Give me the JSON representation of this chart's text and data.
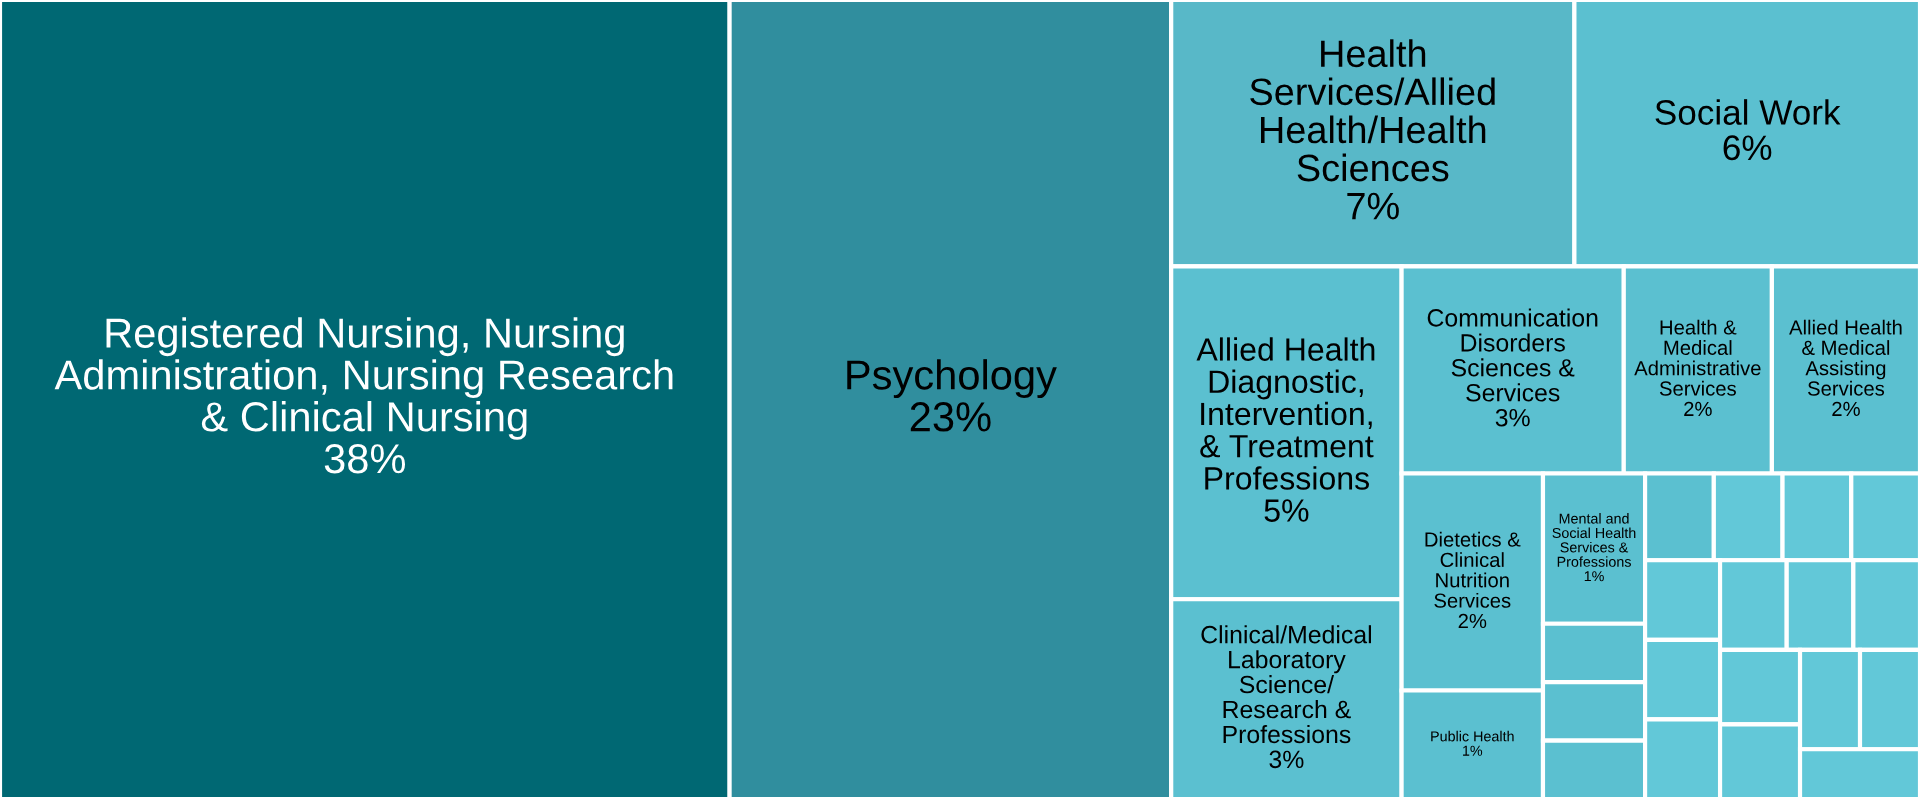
{
  "chart_data": {
    "type": "other",
    "categories": [
      "Registered Nursing, Nursing Administration, Nursing Research & Clinical Nursing",
      "Psychology",
      "Health Services/Allied Health/Health Sciences",
      "Social Work",
      "Allied Health Diagnostic, Intervention, & Treatment Professions",
      "Clinical/Medical Laboratory Science/ Research & Professions",
      "Communication Disorders Sciences & Services",
      "Health & Medical Administrative Services",
      "Allied Health & Medical Assisting Services",
      "Dietetics & Clinical Nutrition Services",
      "Public Health",
      "Mental and Social Health Services & Professions",
      null,
      null,
      null,
      null,
      null,
      null,
      null,
      null,
      null,
      null,
      null,
      null,
      null,
      null,
      null,
      null,
      null,
      null
    ],
    "values": [
      38,
      23,
      7,
      6,
      5,
      3,
      3,
      2,
      2,
      2,
      1,
      1,
      null,
      null,
      null,
      null,
      null,
      null,
      null,
      null,
      null,
      null,
      null,
      null,
      null,
      null,
      null,
      null,
      null,
      null
    ],
    "value_labels": [
      "38%",
      "23%",
      "7%",
      "6%",
      "5%",
      "3%",
      "3%",
      "2%",
      "2%",
      "2%",
      "1%",
      "1%",
      null,
      null,
      null,
      null,
      null,
      null,
      null,
      null,
      null,
      null,
      null,
      null,
      null,
      null,
      null,
      null,
      null,
      null
    ],
    "colors": [
      "#006873",
      "#308e9e",
      "#58b8c8",
      "#5bc0d0",
      "#5bc0d0",
      "#5bc0d0",
      "#5bc0d0",
      "#5bc0d0",
      "#5bc0d0",
      "#5bc0d0",
      "#5bc0d0",
      "#5bc0d0",
      "#5bc0d0",
      "#5bc0d0",
      "#5bc0d0",
      "#5bc0d0",
      "#62c8d8",
      "#62c8d8",
      "#62c8d8",
      "#62c8d8",
      "#62c8d8",
      "#62c8d8",
      "#62c8d8",
      "#62c8d8",
      "#62c8d8",
      "#62c8d8",
      "#62c8d8",
      "#62c8d8",
      "#62c8d8",
      "#62c8d8"
    ]
  }
}
